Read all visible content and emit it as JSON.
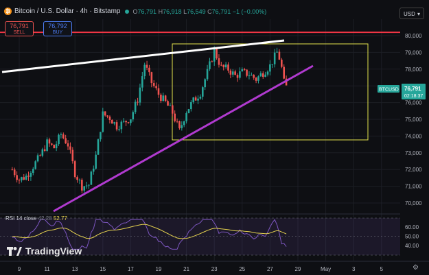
{
  "header": {
    "title": "Bitcoin / U.S. Dollar · 4h · Bitstamp",
    "open_label": "O",
    "open": "76,791",
    "high_label": "H",
    "high": "76,918",
    "low_label": "L",
    "low": "76,549",
    "close_label": "C",
    "close": "76,791",
    "change": "−1 (−0.00%)"
  },
  "trade": {
    "sell_price": "76,791",
    "sell_label": "SELL",
    "buy_price": "76,792",
    "buy_label": "BUY"
  },
  "currency": "USD",
  "price_tag": {
    "symbol": "BTCUSD",
    "price": "76,791",
    "countdown": "02:18:37"
  },
  "rsi": {
    "label": "RSI 14 close",
    "value1": "42.28",
    "value2": "52.77"
  },
  "branding": {
    "logo_text": "TradingView"
  },
  "colors": {
    "background": "#0e0f13",
    "up": "#26a69a",
    "down": "#ef5350",
    "horizontal_level": "#f23645",
    "trend_top": "#ffffff",
    "trend_bottom": "#b03acf",
    "box": "#e6e64c",
    "rsi_line": "#7e57c2",
    "rsi_ma": "#e6d34f"
  },
  "chart_data": {
    "type": "candlestick",
    "x_ticks": [
      "9",
      "11",
      "13",
      "15",
      "17",
      "19",
      "21",
      "23",
      "25",
      "27",
      "29",
      "May",
      "3",
      "5"
    ],
    "y_ticks": [
      70000,
      71000,
      72000,
      73000,
      74000,
      75000,
      76000,
      77000,
      78000,
      79000,
      80000
    ],
    "y_tick_labels": [
      "70,000",
      "71,000",
      "72,000",
      "73,000",
      "74,000",
      "75,000",
      "76,000",
      "77,000",
      "78,000",
      "79,000",
      "80,000"
    ],
    "ylim": [
      69300,
      81400
    ],
    "grid": true,
    "horizontal_level": 80200,
    "box": {
      "x_from": "Apr 20",
      "x_to": "Apr 29 afternoon",
      "y_from": 73900,
      "y_to": 79500
    },
    "trendline_top": {
      "from": [
        "Apr 7",
        77700
      ],
      "to": [
        "Apr 28",
        79700
      ]
    },
    "trendline_bottom": {
      "from": [
        "Apr 11",
        69600
      ],
      "to": [
        "Apr 28",
        78200
      ]
    },
    "prices": [
      [
        8,
        72000
      ],
      [
        8.5,
        71400
      ],
      [
        9,
        71600
      ],
      [
        9.5,
        72200
      ],
      [
        10,
        72800
      ],
      [
        10.5,
        73600
      ],
      [
        11,
        73300
      ],
      [
        11.5,
        74100
      ],
      [
        12,
        73500
      ],
      [
        12.5,
        71800
      ],
      [
        13,
        71000
      ],
      [
        13.5,
        71100
      ],
      [
        14,
        72800
      ],
      [
        14.5,
        75300
      ],
      [
        15,
        75100
      ],
      [
        15.5,
        74600
      ],
      [
        16,
        74800
      ],
      [
        16.5,
        75100
      ],
      [
        17,
        76200
      ],
      [
        17.5,
        78300
      ],
      [
        18,
        77200
      ],
      [
        18.5,
        76500
      ],
      [
        19,
        76000
      ],
      [
        19.5,
        75400
      ],
      [
        20,
        74300
      ],
      [
        20.5,
        75500
      ],
      [
        21,
        76100
      ],
      [
        21.5,
        76600
      ],
      [
        22,
        77800
      ],
      [
        22.5,
        79100
      ],
      [
        23,
        78100
      ],
      [
        23.5,
        78000
      ],
      [
        24,
        77600
      ],
      [
        24.5,
        77800
      ],
      [
        25,
        77700
      ],
      [
        25.5,
        77400
      ],
      [
        26,
        77800
      ],
      [
        26.5,
        78200
      ],
      [
        27,
        79000
      ],
      [
        27.25,
        78500
      ],
      [
        27.5,
        77200
      ],
      [
        27.75,
        76800
      ]
    ],
    "rsi_ylim": [
      33,
      67
    ],
    "rsi_ticks": [
      40,
      50,
      60
    ],
    "rsi_tick_labels": [
      "40.00",
      "50.00",
      "60.00"
    ],
    "rsi_bands": [
      30,
      70
    ]
  }
}
